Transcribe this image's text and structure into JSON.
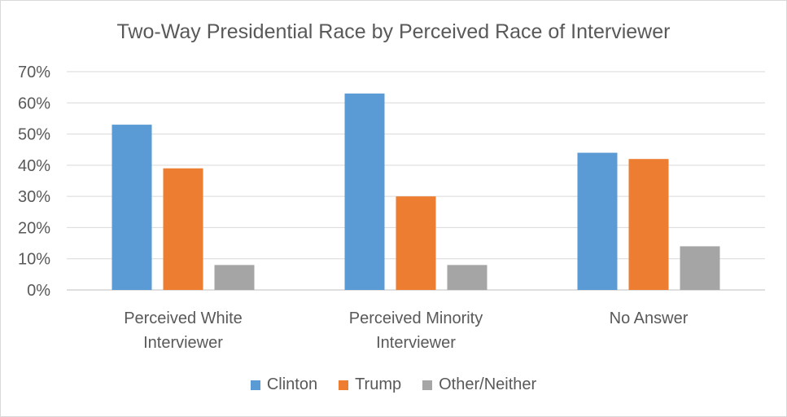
{
  "chart_data": {
    "type": "bar",
    "title": "Two-Way Presidential Race by Perceived Race of Interviewer",
    "categories": [
      "Perceived White Interviewer",
      "Perceived Minority Interviewer",
      "No Answer"
    ],
    "category_lines": [
      [
        "Perceived White",
        "Interviewer"
      ],
      [
        "Perceived Minority",
        "Interviewer"
      ],
      [
        "No Answer"
      ]
    ],
    "series": [
      {
        "name": "Clinton",
        "color": "#5b9bd5",
        "values": [
          53,
          63,
          44
        ]
      },
      {
        "name": "Trump",
        "color": "#ed7d31",
        "values": [
          39,
          30,
          42
        ]
      },
      {
        "name": "Other/Neither",
        "color": "#a5a5a5",
        "values": [
          8,
          8,
          14
        ]
      }
    ],
    "ylim": [
      0,
      70
    ],
    "yticks": [
      0,
      10,
      20,
      30,
      40,
      50,
      60,
      70
    ],
    "ytick_labels": [
      "0%",
      "10%",
      "20%",
      "30%",
      "40%",
      "50%",
      "60%",
      "70%"
    ],
    "grid": true,
    "legend_position": "bottom",
    "xlabel": "",
    "ylabel": ""
  }
}
